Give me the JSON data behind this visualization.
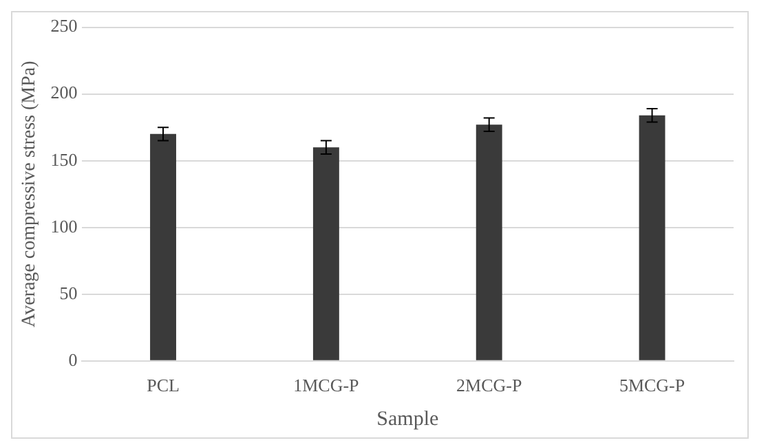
{
  "chart_data": {
    "type": "bar",
    "xlabel": "Sample",
    "ylabel": "Average compressive stress (MPa)",
    "categories": [
      "PCL",
      "1MCG-P",
      "2MCG-P",
      "5MCG-P"
    ],
    "values": [
      170,
      160,
      177,
      184
    ],
    "errors": [
      5,
      5,
      5,
      5
    ],
    "color": "#3a3a3a",
    "ylim": [
      0,
      250
    ],
    "yticks": [
      0,
      50,
      100,
      150,
      200,
      250
    ],
    "grid": "y",
    "legend": false
  }
}
